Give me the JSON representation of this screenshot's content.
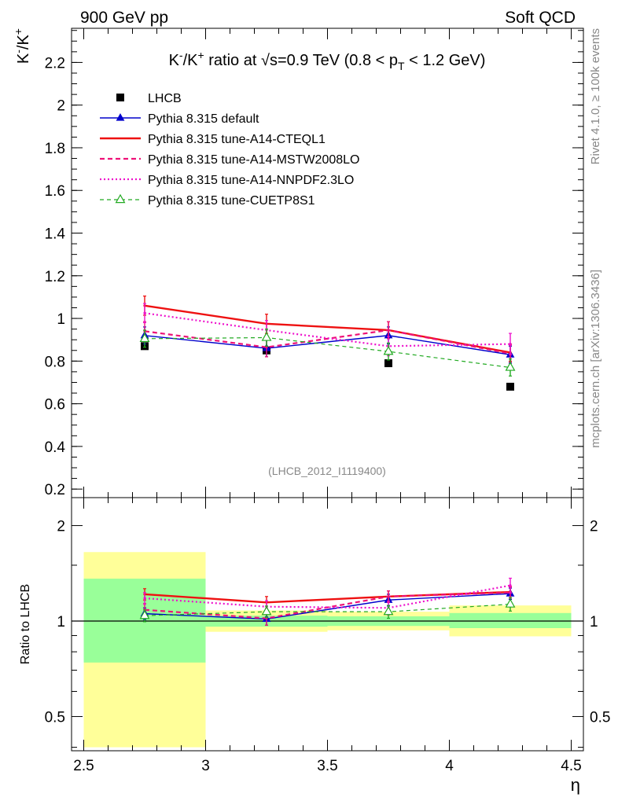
{
  "header": {
    "left_label": "900 GeV pp",
    "right_label": "Soft QCD",
    "side_top": "Rivet 4.1.0, ≥ 100k events",
    "side_bottom": "mcplots.cern.ch [arXiv:1306.3436]"
  },
  "chart_data": [
    {
      "type": "line",
      "panel": "main",
      "title": "K⁻/K⁺ ratio at √s=0.9 TeV (0.8 < p_T < 1.2 GeV)",
      "title_parts": {
        "pre": "K",
        "sup1": "-",
        "mid1": "/K",
        "sup2": "+",
        "mid2": " ratio at ",
        "sqrt": "√",
        "mid3": "s=0.9 TeV (0.8 < p",
        "sub": "T",
        "post": " < 1.2 GeV)"
      },
      "ylabel_parts": {
        "a": "K",
        "sup1": "-",
        "b": "/K",
        "sup2": "+"
      },
      "xlabel": "η",
      "watermark": "(LHCB_2012_I1119400)",
      "xlim": [
        2.45,
        4.55
      ],
      "ylim": [
        0.16,
        2.36
      ],
      "xticks": [
        2.5,
        3,
        3.5,
        4,
        4.5
      ],
      "xtick_labels": [
        "2.5",
        "3",
        "3.5",
        "4",
        "4.5"
      ],
      "yticks": [
        0.2,
        0.4,
        0.6,
        0.8,
        1,
        1.2,
        1.4,
        1.6,
        1.8,
        2,
        2.2
      ],
      "ytick_labels": [
        "0.2",
        "0.4",
        "0.6",
        "0.8",
        "1",
        "1.2",
        "1.4",
        "1.6",
        "1.8",
        "2",
        "2.2"
      ],
      "x": [
        2.75,
        3.25,
        3.75,
        4.25
      ],
      "legend_position": "top-left",
      "series": [
        {
          "name": "LHCB",
          "kind": "data",
          "color": "#000000",
          "values": [
            0.87,
            0.85,
            0.79,
            0.68
          ]
        },
        {
          "name": "Pythia 8.315 default",
          "kind": "solid-marker",
          "color": "#0000cc",
          "values": [
            0.92,
            0.86,
            0.92,
            0.83
          ],
          "errors": [
            0.04,
            0.04,
            0.04,
            0.04
          ]
        },
        {
          "name": "Pythia 8.315 tune-A14-CTEQL1",
          "kind": "solid",
          "color": "#ee1111",
          "values": [
            1.06,
            0.975,
            0.945,
            0.84
          ],
          "errors": [
            0.045,
            0.045,
            0.04,
            0.04
          ]
        },
        {
          "name": "Pythia 8.315 tune-A14-MSTW2008LO",
          "kind": "dashed",
          "color": "#ee1177",
          "values": [
            0.94,
            0.865,
            0.945,
            0.835
          ],
          "errors": [
            0.045,
            0.045,
            0.04,
            0.04
          ]
        },
        {
          "name": "Pythia 8.315 tune-A14-NNPDF2.3LO",
          "kind": "dotted",
          "color": "#ee11cc",
          "values": [
            1.025,
            0.945,
            0.87,
            0.88
          ],
          "errors": [
            0.045,
            0.045,
            0.045,
            0.05
          ]
        },
        {
          "name": "Pythia 8.315 tune-CUETP8S1",
          "kind": "dashed-marker",
          "color": "#22aa22",
          "values": [
            0.905,
            0.91,
            0.845,
            0.77
          ],
          "errors": [
            0.04,
            0.04,
            0.04,
            0.04
          ]
        }
      ]
    },
    {
      "type": "line",
      "panel": "ratio",
      "ylabel": "Ratio to LHCB",
      "xlabel": "η",
      "xlim": [
        2.45,
        4.55
      ],
      "ylim": [
        0.39,
        2.45
      ],
      "yscale": "log",
      "yticks": [
        0.5,
        1,
        2
      ],
      "ytick_labels": [
        "0.5",
        "1",
        "2"
      ],
      "bands": [
        {
          "x": [
            2.5,
            3.0
          ],
          "yellow": [
            0.4,
            1.65
          ],
          "green": [
            0.74,
            1.36
          ]
        },
        {
          "x": [
            3.0,
            3.5
          ],
          "yellow": [
            0.925,
            1.08
          ],
          "green": [
            0.96,
            1.04
          ]
        },
        {
          "x": [
            3.5,
            4.0
          ],
          "yellow": [
            0.935,
            1.07
          ],
          "green": [
            0.965,
            1.035
          ]
        },
        {
          "x": [
            4.0,
            4.5
          ],
          "yellow": [
            0.895,
            1.12
          ],
          "green": [
            0.95,
            1.06
          ]
        }
      ],
      "x": [
        2.75,
        3.25,
        3.75,
        4.25
      ],
      "series": [
        {
          "name": "Pythia 8.315 default",
          "kind": "solid-marker",
          "color": "#0000cc",
          "values": [
            1.055,
            1.015,
            1.165,
            1.22
          ],
          "errors": [
            0.045,
            0.045,
            0.05,
            0.05
          ]
        },
        {
          "name": "Pythia 8.315 tune-A14-CTEQL1",
          "kind": "solid",
          "color": "#ee1111",
          "values": [
            1.215,
            1.145,
            1.195,
            1.235
          ],
          "errors": [
            0.05,
            0.05,
            0.05,
            0.05
          ]
        },
        {
          "name": "Pythia 8.315 tune-A14-MSTW2008LO",
          "kind": "dashed",
          "color": "#ee1177",
          "values": [
            1.085,
            1.02,
            1.195,
            1.23
          ],
          "errors": [
            0.05,
            0.05,
            0.05,
            0.05
          ]
        },
        {
          "name": "Pythia 8.315 tune-A14-NNPDF2.3LO",
          "kind": "dotted",
          "color": "#ee11cc",
          "values": [
            1.18,
            1.11,
            1.1,
            1.295
          ],
          "errors": [
            0.05,
            0.05,
            0.055,
            0.07
          ]
        },
        {
          "name": "Pythia 8.315 tune-CUETP8S1",
          "kind": "dashed-marker",
          "color": "#22aa22",
          "values": [
            1.04,
            1.07,
            1.07,
            1.13
          ],
          "errors": [
            0.045,
            0.045,
            0.05,
            0.055
          ]
        }
      ]
    }
  ]
}
